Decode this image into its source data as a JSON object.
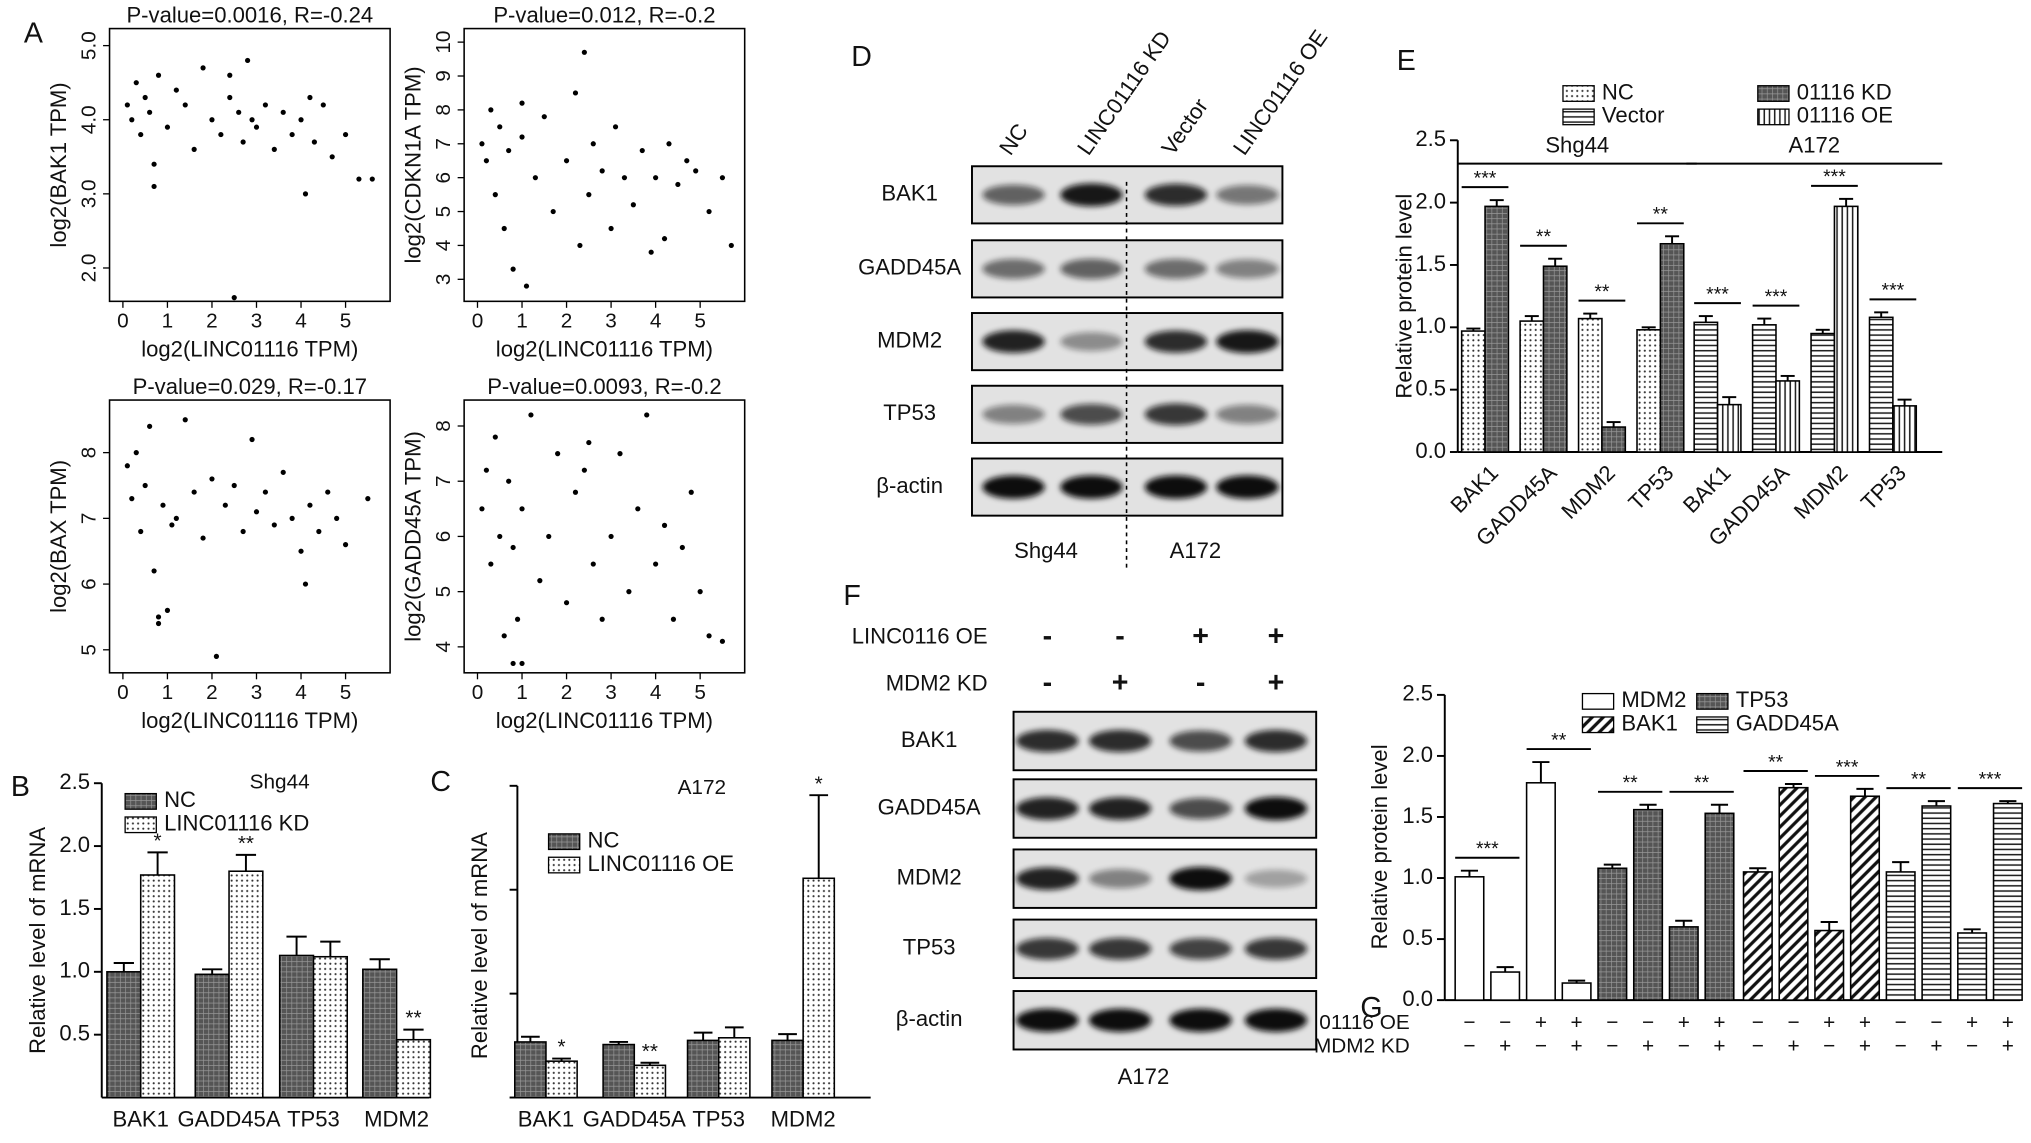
{
  "panel_labels": [
    "A",
    "B",
    "C",
    "D",
    "E",
    "F",
    "G"
  ],
  "chart_data": [
    {
      "type": "scatter",
      "title": "P-value=0.0016, R=-0.24",
      "x_label": "log2(LINC01116 TPM)",
      "y_label": "log2(BAK1 TPM)",
      "color": "#000000",
      "x": [
        0.1,
        0.2,
        0.3,
        0.4,
        0.5,
        0.6,
        0.7,
        0.8,
        1.0,
        1.2,
        1.4,
        1.6,
        1.8,
        2.0,
        2.2,
        2.4,
        2.5,
        2.6,
        2.7,
        2.8,
        2.9,
        3.0,
        3.2,
        3.4,
        3.6,
        3.8,
        4.0,
        4.1,
        4.2,
        4.3,
        4.5,
        4.7,
        5.0,
        5.3,
        5.6,
        2.4,
        0.7
      ],
      "y": [
        4.2,
        4.0,
        4.5,
        3.8,
        4.3,
        4.1,
        3.4,
        4.6,
        3.9,
        4.4,
        4.2,
        3.6,
        4.7,
        4.0,
        3.8,
        4.3,
        1.6,
        4.1,
        3.7,
        4.8,
        4.0,
        3.9,
        4.2,
        3.6,
        4.1,
        3.8,
        4.0,
        3.0,
        4.3,
        3.7,
        4.2,
        3.5,
        3.8,
        3.2,
        3.2,
        4.6,
        3.1
      ],
      "xlim": [
        -0.3,
        6
      ],
      "xticks": [
        0,
        1,
        2,
        3,
        4,
        5
      ],
      "ylim": [
        1.55,
        5.23
      ],
      "yticks": [
        {
          "value": 2,
          "label": "2.0"
        },
        {
          "value": 3,
          "label": "3.0"
        },
        {
          "value": 4,
          "label": "4.0"
        },
        {
          "value": 5,
          "label": "5.0"
        }
      ]
    },
    {
      "type": "scatter",
      "title": "P-value=0.012, R=-0.2",
      "x_label": "log2(LINC01116 TPM)",
      "y_label": "log2(CDKN1A TPM)",
      "color": "#000000",
      "x": [
        0.1,
        0.2,
        0.3,
        0.4,
        0.5,
        0.6,
        0.7,
        0.8,
        1.0,
        1.1,
        1.3,
        1.5,
        1.7,
        2.0,
        2.2,
        2.4,
        2.5,
        2.6,
        2.8,
        3.0,
        3.1,
        3.3,
        3.5,
        3.7,
        3.9,
        4.0,
        4.2,
        4.3,
        4.5,
        4.7,
        4.9,
        5.2,
        5.5,
        5.7,
        2.3,
        1.0
      ],
      "y": [
        7.0,
        6.5,
        8.0,
        5.5,
        7.5,
        4.5,
        6.8,
        3.3,
        7.2,
        2.8,
        6.0,
        7.8,
        5.0,
        6.5,
        8.5,
        9.7,
        5.5,
        7.0,
        6.2,
        4.5,
        7.5,
        6.0,
        5.2,
        6.8,
        3.8,
        6.0,
        4.2,
        7.0,
        5.8,
        6.5,
        6.2,
        5.0,
        6.0,
        4.0,
        4.0,
        8.2
      ],
      "xlim": [
        -0.3,
        6
      ],
      "xticks": [
        0,
        1,
        2,
        3,
        4,
        5
      ],
      "ylim": [
        2.35,
        10.4
      ],
      "yticks": [
        3,
        4,
        5,
        6,
        7,
        8,
        9,
        10
      ]
    },
    {
      "type": "scatter",
      "title": "P-value=0.029, R=-0.17",
      "x_label": "log2(LINC01116 TPM)",
      "y_label": "log2(BAX TPM)",
      "color": "#000000",
      "x": [
        0.1,
        0.2,
        0.3,
        0.4,
        0.5,
        0.6,
        0.7,
        0.8,
        0.9,
        1.0,
        1.2,
        1.4,
        1.6,
        1.8,
        2.0,
        2.1,
        2.3,
        2.5,
        2.7,
        2.9,
        3.0,
        3.2,
        3.4,
        3.6,
        3.8,
        4.0,
        4.1,
        4.2,
        4.4,
        4.6,
        4.8,
        5.0,
        5.5,
        0.8,
        1.1
      ],
      "y": [
        7.8,
        7.3,
        8.0,
        6.8,
        7.5,
        8.4,
        6.2,
        5.4,
        7.2,
        5.6,
        7.0,
        8.5,
        7.4,
        6.7,
        7.6,
        4.9,
        7.2,
        7.5,
        6.8,
        8.2,
        7.1,
        7.4,
        6.9,
        7.7,
        7.0,
        6.5,
        6.0,
        7.2,
        6.8,
        7.4,
        7.0,
        6.6,
        7.3,
        5.5,
        6.9
      ],
      "xlim": [
        -0.3,
        6
      ],
      "xticks": [
        0,
        1,
        2,
        3,
        4,
        5
      ],
      "ylim": [
        4.65,
        8.8
      ],
      "yticks": [
        5,
        6,
        7,
        8
      ]
    },
    {
      "type": "scatter",
      "title": "P-value=0.0093, R=-0.2",
      "x_label": "log2(LINC01116 TPM)",
      "y_label": "log2(GADD45A TPM)",
      "color": "#000000",
      "x": [
        0.1,
        0.2,
        0.3,
        0.4,
        0.5,
        0.6,
        0.7,
        0.8,
        0.9,
        1.0,
        1.2,
        1.4,
        1.6,
        1.8,
        2.0,
        2.2,
        2.4,
        2.6,
        2.8,
        3.0,
        3.2,
        3.4,
        3.6,
        3.8,
        4.0,
        4.2,
        4.4,
        4.6,
        4.8,
        5.0,
        5.2,
        5.5,
        0.8,
        1.0,
        2.5
      ],
      "y": [
        6.5,
        7.2,
        5.5,
        7.8,
        6.0,
        4.2,
        7.0,
        5.8,
        4.5,
        6.5,
        8.2,
        5.2,
        6.0,
        7.5,
        4.8,
        6.8,
        7.2,
        5.5,
        4.5,
        6.0,
        7.5,
        5.0,
        6.5,
        8.2,
        5.5,
        6.2,
        4.5,
        5.8,
        6.8,
        5.0,
        4.2,
        4.1,
        3.7,
        3.7,
        7.7
      ],
      "xlim": [
        -0.3,
        6
      ],
      "xticks": [
        0,
        1,
        2,
        3,
        4,
        5
      ],
      "ylim": [
        3.53,
        8.47
      ],
      "yticks": [
        4,
        5,
        6,
        7,
        8
      ]
    },
    {
      "type": "bar",
      "title": "Shg44",
      "y_label": "Relative level of mRNA",
      "categories": [
        "BAK1",
        "GADD45A",
        "TP53",
        "MDM2"
      ],
      "series": [
        {
          "name": "NC",
          "pattern": "crosshatch",
          "values": [
            1.0,
            0.98,
            1.13,
            1.02
          ],
          "errors": [
            0.07,
            0.04,
            0.15,
            0.08
          ]
        },
        {
          "name": "LINC01116 KD",
          "pattern": "dots",
          "values": [
            1.77,
            1.8,
            1.12,
            0.46
          ],
          "errors": [
            0.18,
            0.13,
            0.12,
            0.08
          ],
          "annotations": [
            "*",
            "**",
            null,
            "**"
          ]
        }
      ],
      "ylim": [
        0,
        2.5
      ],
      "yticks": [
        0.5,
        {
          "value": 1,
          "label": "1.0"
        },
        1.5,
        {
          "value": 2,
          "label": "2.0"
        },
        2.5
      ]
    },
    {
      "type": "bar",
      "title": "A172",
      "y_label": "Relative level of mRNA",
      "categories": [
        "BAK1",
        "GADD45A",
        "TP53",
        "MDM2"
      ],
      "series": [
        {
          "name": "NC",
          "pattern": "crosshatch",
          "values": [
            1.07,
            1.02,
            1.1,
            1.1
          ],
          "errors": [
            0.1,
            0.05,
            0.15,
            0.12
          ]
        },
        {
          "name": "LINC01116 OE",
          "pattern": "dots",
          "values": [
            0.7,
            0.62,
            1.15,
            4.22
          ],
          "errors": [
            0.05,
            0.05,
            0.2,
            1.6
          ],
          "annotations": [
            "*",
            "**",
            null,
            "*"
          ]
        }
      ],
      "ylim": [
        0,
        6
      ],
      "yticks": [
        0,
        2,
        4,
        6
      ],
      "show_ytick_labels": false
    },
    {
      "type": "bar",
      "y_label": "Relative protein level",
      "categories": [
        "BAK1",
        "GADD45A",
        "MDM2",
        "TP53",
        "BAK1",
        "GADD45A",
        "MDM2",
        "TP53"
      ],
      "groups": [
        "Shg44",
        "A172"
      ],
      "series": [
        {
          "name": "NC",
          "pattern": "dots",
          "values": [
            0.97,
            1.05,
            1.07,
            0.98,
            null,
            null,
            null,
            null
          ],
          "errors": [
            0.02,
            0.04,
            0.04,
            0.02,
            null,
            null,
            null,
            null
          ]
        },
        {
          "name": "01116 KD",
          "pattern": "crosshatch",
          "values": [
            1.97,
            1.49,
            0.2,
            1.67,
            null,
            null,
            null,
            null
          ],
          "errors": [
            0.05,
            0.06,
            0.04,
            0.06,
            null,
            null,
            null,
            null
          ]
        },
        {
          "name": "Vector",
          "pattern": "hlines",
          "values": [
            null,
            null,
            null,
            null,
            1.04,
            1.02,
            0.95,
            1.08
          ],
          "errors": [
            null,
            null,
            null,
            null,
            0.05,
            0.05,
            0.03,
            0.04
          ]
        },
        {
          "name": "01116 OE",
          "pattern": "vlines",
          "values": [
            null,
            null,
            null,
            null,
            0.38,
            0.57,
            1.97,
            0.37
          ],
          "errors": [
            null,
            null,
            null,
            null,
            0.06,
            0.04,
            0.06,
            0.05
          ]
        }
      ],
      "significance": [
        "***",
        "**",
        "**",
        "**",
        "***",
        "***",
        "***",
        "***"
      ],
      "ylim": [
        0,
        2.5
      ],
      "yticks": [
        {
          "value": 0,
          "label": "0.0"
        },
        0.5,
        {
          "value": 1,
          "label": "1.0"
        },
        1.5,
        {
          "value": 2,
          "label": "2.0"
        },
        2.5
      ]
    },
    {
      "type": "bar",
      "y_label": "Relative protein level",
      "conditions": [
        {
          "name": "01116 OE",
          "values": [
            "−",
            "−",
            "+",
            "+"
          ]
        },
        {
          "name": "MDM2 KD",
          "values": [
            "−",
            "+",
            "−",
            "+"
          ]
        }
      ],
      "series": [
        {
          "name": "MDM2",
          "pattern": "none",
          "values": [
            1.01,
            0.23,
            1.78,
            0.14
          ],
          "errors": [
            0.05,
            0.04,
            0.17,
            0.02
          ],
          "significance": [
            "***",
            "**"
          ]
        },
        {
          "name": "TP53",
          "pattern": "crosshatch",
          "values": [
            1.08,
            1.56,
            0.6,
            1.53
          ],
          "errors": [
            0.03,
            0.04,
            0.05,
            0.07
          ],
          "significance": [
            "**",
            "**"
          ]
        },
        {
          "name": "BAK1",
          "pattern": "diagonal",
          "values": [
            1.05,
            1.74,
            0.57,
            1.67
          ],
          "errors": [
            0.03,
            0.03,
            0.07,
            0.06
          ],
          "significance": [
            "**",
            "***"
          ]
        },
        {
          "name": "GADD45A",
          "pattern": "hlines",
          "values": [
            1.05,
            1.59,
            0.55,
            1.61
          ],
          "errors": [
            0.08,
            0.04,
            0.03,
            0.02
          ],
          "significance": [
            "**",
            "***"
          ]
        }
      ],
      "ylim": [
        0,
        2.5
      ],
      "yticks": [
        {
          "value": 0,
          "label": "0.0"
        },
        0.5,
        {
          "value": 1,
          "label": "1.0"
        },
        1.5,
        {
          "value": 2,
          "label": "2.0"
        },
        2.5
      ]
    }
  ],
  "blots": [
    {
      "lanes": [
        "NC",
        "LINC01116 KD",
        "Vector",
        "LINC01116 OE"
      ],
      "proteins": [
        "BAK1",
        "GADD45A",
        "MDM2",
        "TP53",
        "β-actin"
      ],
      "cell_lines": [
        "Shg44",
        "A172"
      ]
    },
    {
      "conditions": [
        {
          "name": "LINC0116 OE",
          "values": [
            "-",
            "-",
            "+",
            "+"
          ]
        },
        {
          "name": "MDM2 KD",
          "values": [
            "-",
            "+",
            "-",
            "+"
          ]
        }
      ],
      "proteins": [
        "BAK1",
        "GADD45A",
        "MDM2",
        "TP53",
        "β-actin"
      ],
      "cell_lines": [
        "A172"
      ]
    }
  ]
}
